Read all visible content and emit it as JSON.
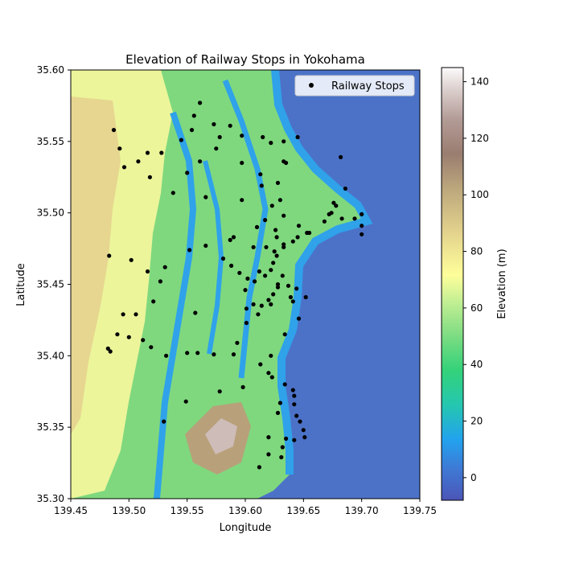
{
  "chart_data": {
    "type": "scatter",
    "title": "Elevation of Railway Stops in Yokohama",
    "xlabel": "Longitude",
    "ylabel": "Latitude",
    "xlim": [
      139.45,
      139.75
    ],
    "ylim": [
      35.3,
      35.6
    ],
    "x_ticks": [
      139.45,
      139.5,
      139.55,
      139.6,
      139.65,
      139.7,
      139.75
    ],
    "x_tick_labels": [
      "139.45",
      "139.50",
      "139.55",
      "139.60",
      "139.65",
      "139.70",
      "139.75"
    ],
    "y_ticks": [
      35.3,
      35.35,
      35.4,
      35.45,
      35.5,
      35.55,
      35.6
    ],
    "y_tick_labels": [
      "35.30",
      "35.35",
      "35.40",
      "35.45",
      "35.50",
      "35.55",
      "35.60"
    ],
    "legend": {
      "placement": "top-right",
      "entries": [
        "Railway Stops"
      ]
    },
    "colorbar": {
      "label": "Elevation (m)",
      "range": [
        -8,
        145
      ],
      "ticks": [
        0,
        20,
        40,
        60,
        80,
        100,
        120,
        140
      ],
      "tick_labels": [
        "0",
        "20",
        "40",
        "60",
        "80",
        "100",
        "120",
        "140"
      ],
      "colormap": "terrain"
    },
    "background": "elevation raster (terrain colormap)",
    "series": [
      {
        "name": "Railway Stops",
        "color": "#000000",
        "points": [
          [
            139.561,
            35.577
          ],
          [
            139.556,
            35.568
          ],
          [
            139.573,
            35.562
          ],
          [
            139.587,
            35.561
          ],
          [
            139.487,
            35.558
          ],
          [
            139.554,
            35.558
          ],
          [
            139.597,
            35.554
          ],
          [
            139.615,
            35.553
          ],
          [
            139.645,
            35.553
          ],
          [
            139.578,
            35.553
          ],
          [
            139.633,
            35.55
          ],
          [
            139.622,
            35.549
          ],
          [
            139.545,
            35.551
          ],
          [
            139.492,
            35.545
          ],
          [
            139.575,
            35.545
          ],
          [
            139.516,
            35.542
          ],
          [
            139.528,
            35.542
          ],
          [
            139.682,
            35.539
          ],
          [
            139.508,
            35.536
          ],
          [
            139.561,
            35.536
          ],
          [
            139.633,
            35.536
          ],
          [
            139.635,
            35.535
          ],
          [
            139.597,
            35.535
          ],
          [
            139.496,
            35.532
          ],
          [
            139.55,
            35.528
          ],
          [
            139.613,
            35.527
          ],
          [
            139.518,
            35.525
          ],
          [
            139.628,
            35.521
          ],
          [
            139.614,
            35.519
          ],
          [
            139.686,
            35.517
          ],
          [
            139.538,
            35.514
          ],
          [
            139.566,
            35.511
          ],
          [
            139.597,
            35.509
          ],
          [
            139.63,
            35.509
          ],
          [
            139.676,
            35.507
          ],
          [
            139.678,
            35.505
          ],
          [
            139.623,
            35.505
          ],
          [
            139.674,
            35.5
          ],
          [
            139.672,
            35.499
          ],
          [
            139.7,
            35.499
          ],
          [
            139.633,
            35.498
          ],
          [
            139.617,
            35.495
          ],
          [
            139.694,
            35.496
          ],
          [
            139.683,
            35.496
          ],
          [
            139.668,
            35.494
          ],
          [
            139.646,
            35.491
          ],
          [
            139.7,
            35.491
          ],
          [
            139.626,
            35.488
          ],
          [
            139.61,
            35.49
          ],
          [
            139.655,
            35.486
          ],
          [
            139.653,
            35.486
          ],
          [
            139.7,
            35.485
          ],
          [
            139.645,
            35.483
          ],
          [
            139.627,
            35.483
          ],
          [
            139.59,
            35.483
          ],
          [
            139.587,
            35.481
          ],
          [
            139.641,
            35.48
          ],
          [
            139.633,
            35.478
          ],
          [
            139.633,
            35.476
          ],
          [
            139.566,
            35.477
          ],
          [
            139.607,
            35.476
          ],
          [
            139.618,
            35.476
          ],
          [
            139.552,
            35.474
          ],
          [
            139.625,
            35.473
          ],
          [
            139.627,
            35.47
          ],
          [
            139.483,
            35.47
          ],
          [
            139.581,
            35.468
          ],
          [
            139.502,
            35.467
          ],
          [
            139.624,
            35.465
          ],
          [
            139.588,
            35.463
          ],
          [
            139.531,
            35.462
          ],
          [
            139.516,
            35.459
          ],
          [
            139.622,
            35.46
          ],
          [
            139.612,
            35.459
          ],
          [
            139.595,
            35.458
          ],
          [
            139.617,
            35.456
          ],
          [
            139.632,
            35.456
          ],
          [
            139.602,
            35.454
          ],
          [
            139.608,
            35.452
          ],
          [
            139.527,
            35.452
          ],
          [
            139.628,
            35.45
          ],
          [
            139.637,
            35.449
          ],
          [
            139.628,
            35.448
          ],
          [
            139.644,
            35.447
          ],
          [
            139.6,
            35.446
          ],
          [
            139.624,
            35.443
          ],
          [
            139.639,
            35.441
          ],
          [
            139.652,
            35.441
          ],
          [
            139.62,
            35.439
          ],
          [
            139.622,
            35.436
          ],
          [
            139.614,
            35.435
          ],
          [
            139.607,
            35.436
          ],
          [
            139.641,
            35.438
          ],
          [
            139.521,
            35.438
          ],
          [
            139.601,
            35.433
          ],
          [
            139.557,
            35.43
          ],
          [
            139.611,
            35.429
          ],
          [
            139.495,
            35.429
          ],
          [
            139.506,
            35.429
          ],
          [
            139.646,
            35.426
          ],
          [
            139.601,
            35.423
          ],
          [
            139.634,
            35.415
          ],
          [
            139.49,
            35.415
          ],
          [
            139.5,
            35.413
          ],
          [
            139.512,
            35.411
          ],
          [
            139.593,
            35.409
          ],
          [
            139.519,
            35.406
          ],
          [
            139.482,
            35.405
          ],
          [
            139.484,
            35.403
          ],
          [
            139.55,
            35.402
          ],
          [
            139.559,
            35.402
          ],
          [
            139.573,
            35.401
          ],
          [
            139.59,
            35.401
          ],
          [
            139.532,
            35.4
          ],
          [
            139.622,
            35.4
          ],
          [
            139.613,
            35.394
          ],
          [
            139.62,
            35.388
          ],
          [
            139.623,
            35.385
          ],
          [
            139.634,
            35.38
          ],
          [
            139.598,
            35.378
          ],
          [
            139.641,
            35.376
          ],
          [
            139.578,
            35.375
          ],
          [
            139.642,
            35.372
          ],
          [
            139.549,
            35.368
          ],
          [
            139.63,
            35.367
          ],
          [
            139.642,
            35.366
          ],
          [
            139.628,
            35.36
          ],
          [
            139.644,
            35.358
          ],
          [
            139.53,
            35.354
          ],
          [
            139.647,
            35.354
          ],
          [
            139.65,
            35.348
          ],
          [
            139.651,
            35.343
          ],
          [
            139.62,
            35.343
          ],
          [
            139.635,
            35.342
          ],
          [
            139.642,
            35.341
          ],
          [
            139.632,
            35.336
          ],
          [
            139.62,
            35.331
          ],
          [
            139.631,
            35.329
          ],
          [
            139.612,
            35.322
          ]
        ]
      }
    ]
  }
}
